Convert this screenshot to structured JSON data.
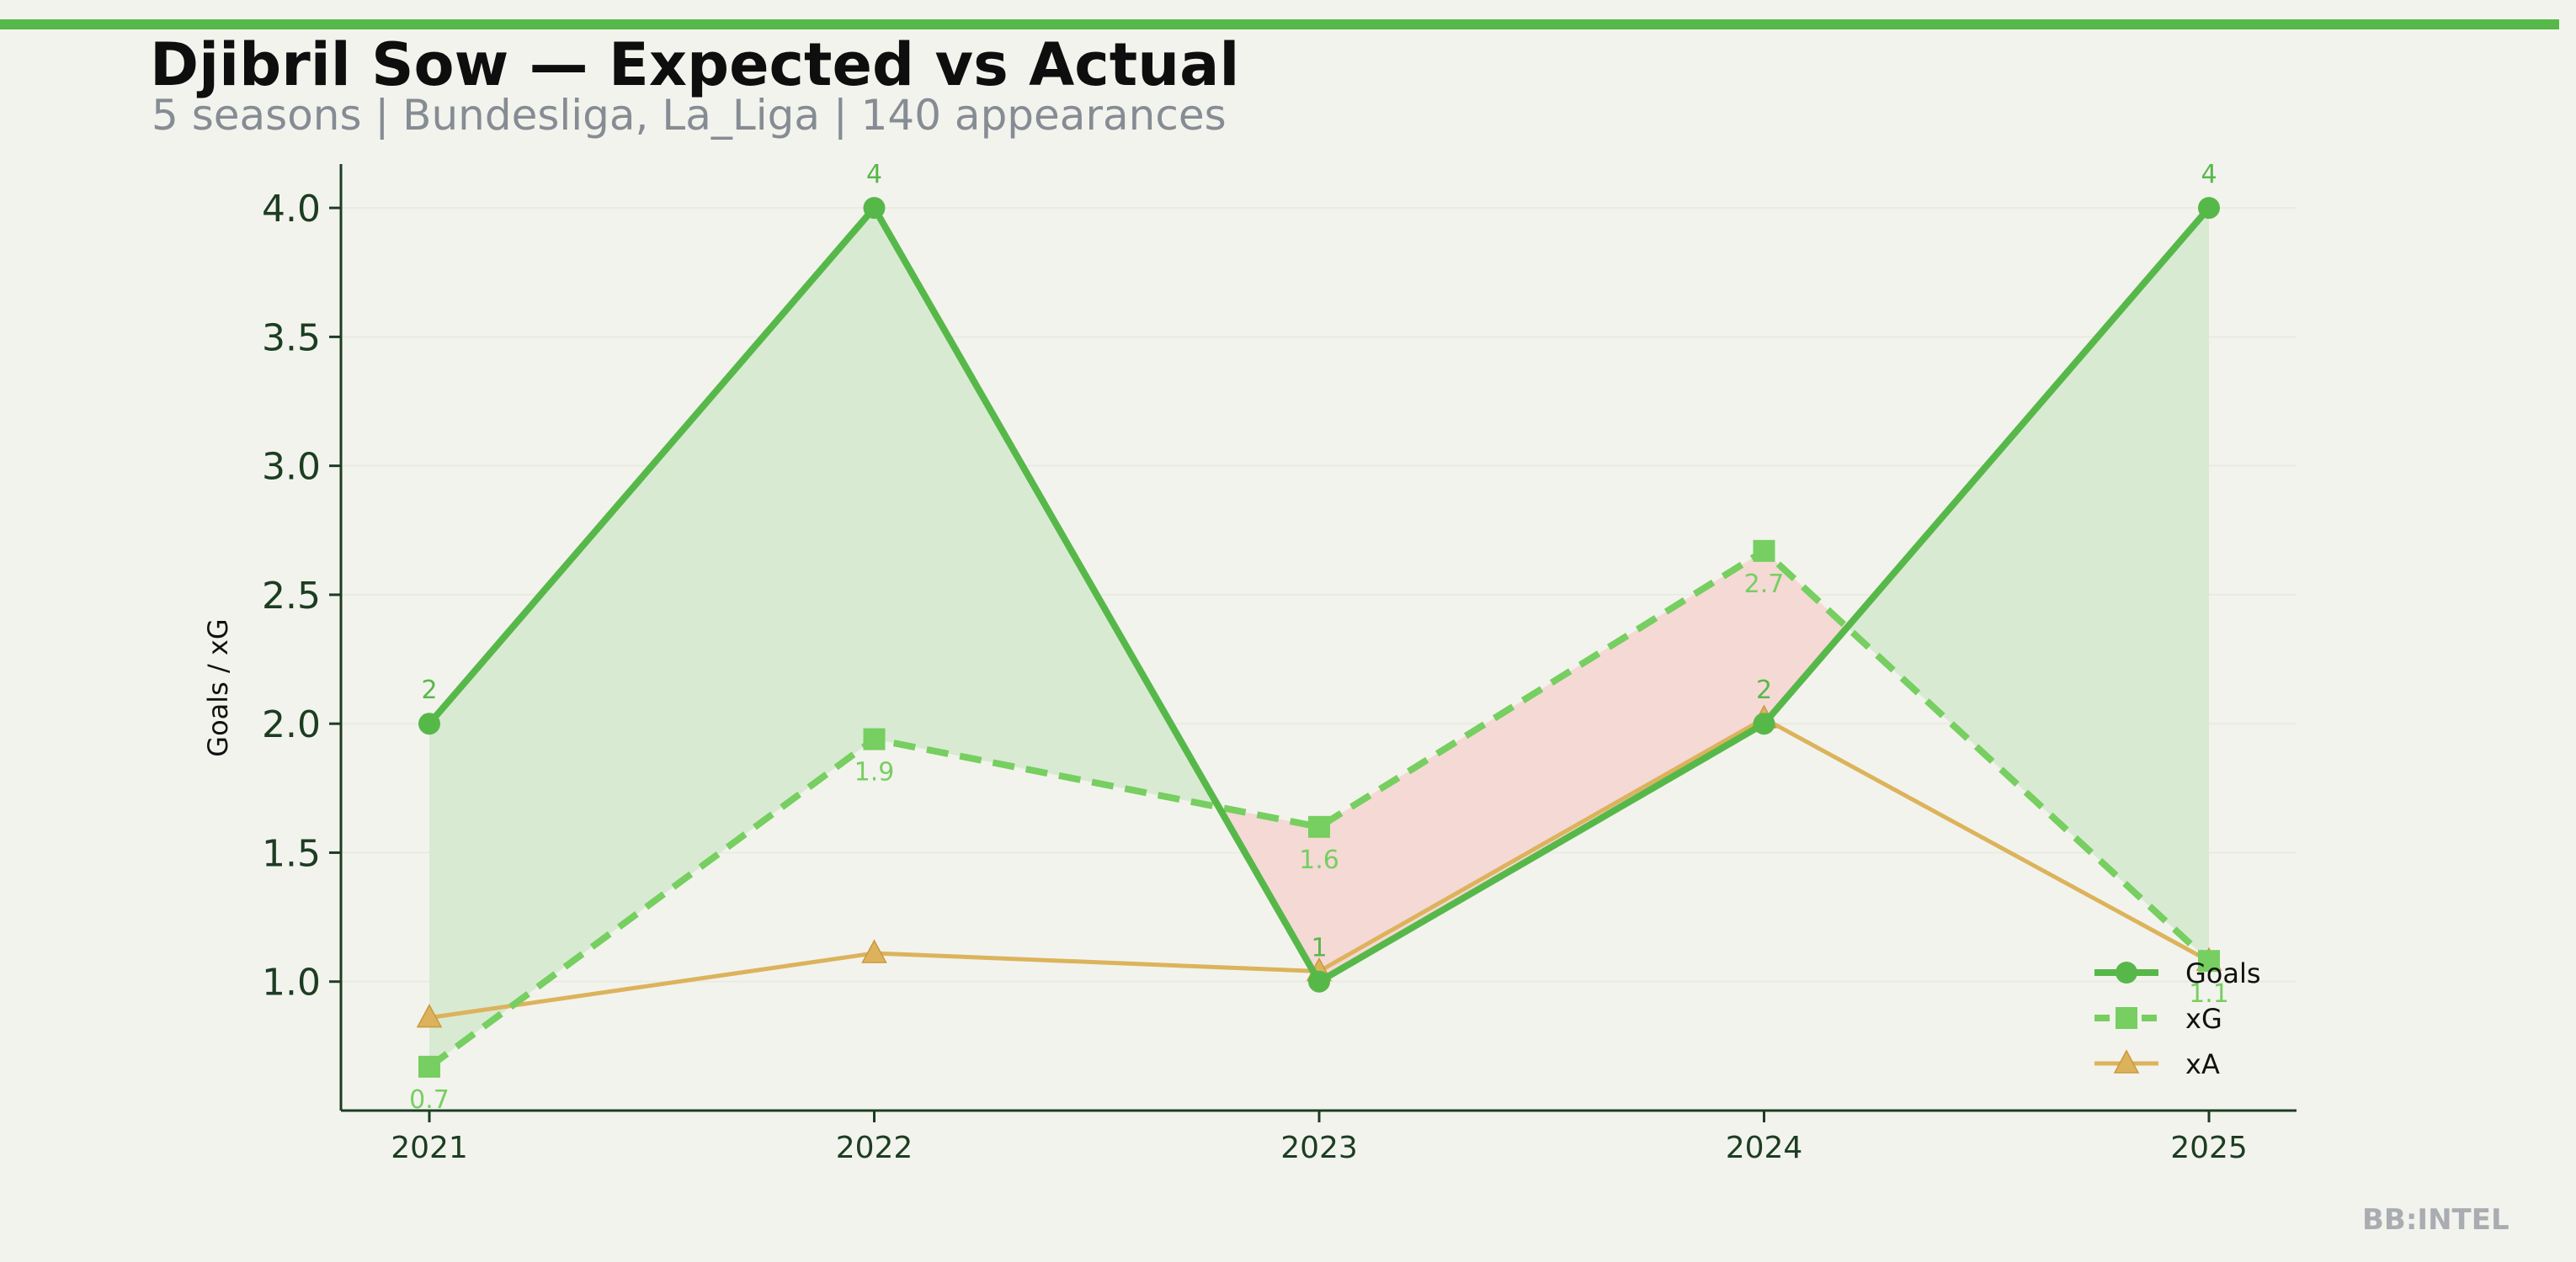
{
  "header": {
    "title": "Djibril Sow — Expected vs Actual",
    "subtitle": "5 seasons | Bundesliga, La_Liga | 140 appearances"
  },
  "brand": "BB:INTEL",
  "colors": {
    "goals": "#57b84a",
    "xg": "#76cf60",
    "xa": "#dcb35c",
    "over_fill": "#d9ead3",
    "under_fill": "#f5d9d5",
    "axis": "#1c3d22",
    "accent_bar": "#57b84a"
  },
  "chart_data": {
    "type": "line",
    "x": [
      "2021",
      "2022",
      "2023",
      "2024",
      "2025"
    ],
    "ylabel": "Goals / xG",
    "xlabel": "",
    "ylim": [
      0.5,
      4.17
    ],
    "yticks": [
      "1.0",
      "1.5",
      "2.0",
      "2.5",
      "3.0",
      "3.5",
      "4.0"
    ],
    "grid": true,
    "legend_position": "lower-right",
    "series": [
      {
        "name": "Goals",
        "values": [
          2,
          4,
          1,
          2,
          4
        ],
        "labels": [
          "2",
          "4",
          "1",
          "2",
          "4"
        ],
        "style": "solid",
        "marker": "circle"
      },
      {
        "name": "xG",
        "values": [
          0.67,
          1.94,
          1.6,
          2.67,
          1.08
        ],
        "labels": [
          "0.7",
          "1.9",
          "1.6",
          "2.7",
          "1.1"
        ],
        "style": "dashed",
        "marker": "square"
      },
      {
        "name": "xA",
        "values": [
          0.86,
          1.11,
          1.04,
          2.02,
          1.08
        ],
        "style": "solid",
        "marker": "triangle"
      }
    ]
  }
}
